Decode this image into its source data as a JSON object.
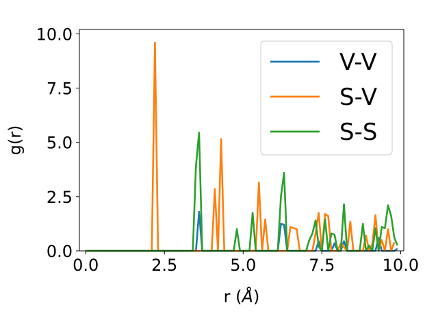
{
  "chart_data": {
    "type": "line",
    "xlabel_prefix": "r (",
    "xlabel_unit": "Å",
    "xlabel_suffix": ")",
    "ylabel": "g(r)",
    "xlim": [
      -0.2,
      10.1
    ],
    "ylim": [
      0,
      10.2
    ],
    "xticks": [
      0.0,
      2.5,
      5.0,
      7.5,
      10.0
    ],
    "xtick_labels": [
      "0.0",
      "2.5",
      "5.0",
      "7.5",
      "10.0"
    ],
    "yticks": [
      0.0,
      2.5,
      5.0,
      7.5,
      10.0
    ],
    "ytick_labels": [
      "0.0",
      "2.5",
      "5.0",
      "7.5",
      "10.0"
    ],
    "grid": false,
    "legend_position": "top-right",
    "series": [
      {
        "name": "V-V",
        "color": "#1f77b4",
        "x": [
          0,
          3.5,
          3.6,
          3.7,
          6.1,
          6.2,
          6.3,
          6.4,
          7.3,
          7.4,
          7.5,
          7.8,
          7.9,
          8.0,
          8.1,
          8.2,
          8.3,
          9.2,
          9.3,
          9.4,
          9.8,
          9.9
        ],
        "y": [
          0,
          0,
          1.8,
          0,
          0,
          1.25,
          1.2,
          0,
          0,
          0.45,
          0,
          0,
          0.35,
          0,
          0,
          0.45,
          0,
          0,
          0.6,
          0,
          0,
          0.1
        ]
      },
      {
        "name": "S-V",
        "color": "#ff7f0e",
        "x": [
          0,
          2.1,
          2.2,
          2.3,
          4.0,
          4.1,
          4.2,
          4.3,
          4.4,
          5.4,
          5.5,
          5.6,
          5.7,
          5.8,
          6.4,
          6.5,
          6.7,
          6.8,
          7.2,
          7.3,
          7.4,
          7.5,
          7.6,
          7.7,
          7.8,
          8.0,
          8.1,
          8.3,
          8.4,
          8.5,
          8.8,
          8.9,
          9.0,
          9.1,
          9.2,
          9.3,
          9.4,
          9.5,
          9.6,
          9.7,
          9.8
        ],
        "y": [
          0,
          0,
          9.6,
          0,
          0,
          2.85,
          0,
          5.15,
          0,
          0,
          3.15,
          0,
          1.45,
          0,
          0,
          1.1,
          1.0,
          0,
          0,
          0.8,
          1.75,
          0,
          1.7,
          1.6,
          0,
          0,
          0.35,
          0,
          1.35,
          0,
          0,
          0.7,
          0,
          0.3,
          1.65,
          0,
          0.5,
          0,
          1.0,
          0,
          0.4
        ]
      },
      {
        "name": "S-S",
        "color": "#2ca02c",
        "x": [
          0,
          3.4,
          3.5,
          3.6,
          3.7,
          4.7,
          4.8,
          4.9,
          5.2,
          5.3,
          5.4,
          6.0,
          6.1,
          6.2,
          6.3,
          6.4,
          7.0,
          7.1,
          7.2,
          7.3,
          7.4,
          7.5,
          7.6,
          7.7,
          7.8,
          7.9,
          8.0,
          8.1,
          8.2,
          8.3,
          8.7,
          8.8,
          8.9,
          9.0,
          9.1,
          9.2,
          9.3,
          9.4,
          9.5,
          9.6,
          9.7,
          9.8,
          9.9
        ],
        "y": [
          0,
          0,
          3.9,
          5.45,
          0,
          0,
          1.0,
          0,
          0,
          1.75,
          0,
          0,
          0,
          2.5,
          3.6,
          0,
          0,
          0.5,
          0.8,
          1.4,
          0.2,
          0,
          1.45,
          0,
          0.8,
          0.75,
          0,
          0,
          2.15,
          0,
          0,
          1.25,
          0,
          0.25,
          0,
          1.05,
          0,
          1.1,
          1.05,
          2.1,
          1.6,
          0.6,
          0.25
        ]
      }
    ]
  }
}
